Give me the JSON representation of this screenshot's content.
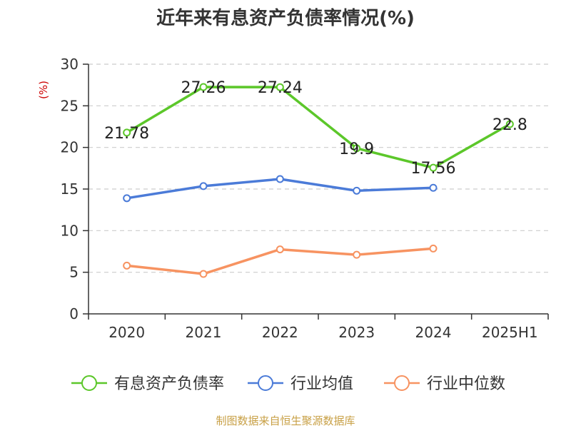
{
  "chart_data": {
    "type": "line",
    "title": "近年来有息资产负债率情况(%)",
    "ylabel": "(%)",
    "categories": [
      "2020",
      "2021",
      "2022",
      "2023",
      "2024",
      "2025H1"
    ],
    "ylim": [
      0,
      30
    ],
    "yticks": [
      "0",
      "5",
      "10",
      "15",
      "20",
      "25",
      "30"
    ],
    "grid": true,
    "legend_position": "bottom",
    "series": [
      {
        "name": "有息资产负债率",
        "values": [
          21.78,
          27.26,
          27.24,
          19.9,
          17.56,
          22.8
        ],
        "labels": [
          "21.78",
          "27.26",
          "27.24",
          "19.9",
          "17.56",
          "22.8"
        ],
        "color": "#5cc72a"
      },
      {
        "name": "行业均值",
        "values": [
          13.9,
          15.35,
          16.2,
          14.8,
          15.15,
          null
        ],
        "color": "#4b7bd8"
      },
      {
        "name": "行业中位数",
        "values": [
          5.8,
          4.8,
          7.75,
          7.1,
          7.85,
          null
        ],
        "color": "#f79361"
      }
    ]
  },
  "footer": {
    "source": "制图数据来自恒生聚源数据库"
  }
}
